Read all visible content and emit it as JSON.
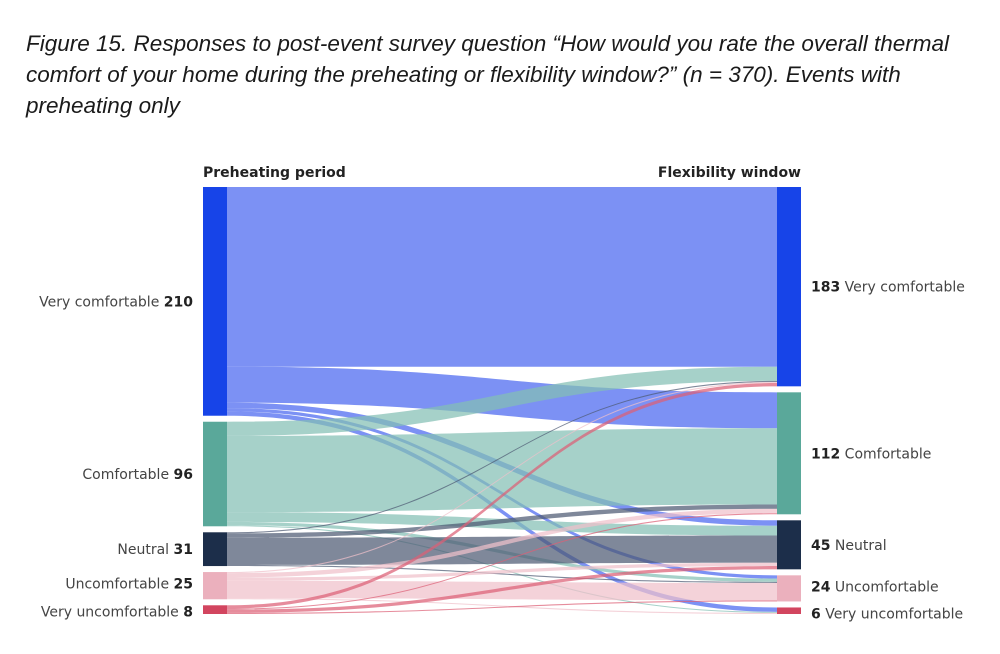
{
  "figure": {
    "caption": "Figure 15. Responses to post-event survey question “How would you rate the overall thermal comfort of your home during the preheating or flexibility window?” (n = 370). Events with preheating only"
  },
  "chart_data": {
    "type": "sankey",
    "columns": [
      "Preheating period",
      "Flexibility window"
    ],
    "left_nodes": [
      {
        "id": "L_vc",
        "label": "Very comfortable",
        "value": 210,
        "color": "#1744e8",
        "flow_color": "#4a66f0"
      },
      {
        "id": "L_c",
        "label": "Comfortable",
        "value": 96,
        "color": "#5aa89a",
        "flow_color": "#84bfb4"
      },
      {
        "id": "L_n",
        "label": "Neutral",
        "value": 31,
        "color": "#1c2e4a",
        "flow_color": "#4d5a73"
      },
      {
        "id": "L_u",
        "label": "Uncomfortable",
        "value": 25,
        "color": "#ebb0bd",
        "flow_color": "#f0c1cb"
      },
      {
        "id": "L_vu",
        "label": "Very uncomfortable",
        "value": 8,
        "color": "#d2455f",
        "flow_color": "#dc6076"
      }
    ],
    "right_nodes": [
      {
        "id": "R_vc",
        "label": "Very comfortable",
        "value": 183,
        "color": "#1744e8"
      },
      {
        "id": "R_c",
        "label": "Comfortable",
        "value": 112,
        "color": "#5aa89a"
      },
      {
        "id": "R_n",
        "label": "Neutral",
        "value": 45,
        "color": "#1c2e4a"
      },
      {
        "id": "R_u",
        "label": "Uncomfortable",
        "value": 24,
        "color": "#ebb0bd"
      },
      {
        "id": "R_vu",
        "label": "Very uncomfortable",
        "value": 6,
        "color": "#d2455f"
      }
    ],
    "flows": [
      {
        "source": "L_vc",
        "target": "R_vc",
        "value": 165
      },
      {
        "source": "L_vc",
        "target": "R_c",
        "value": 33
      },
      {
        "source": "L_vc",
        "target": "R_n",
        "value": 5
      },
      {
        "source": "L_vc",
        "target": "R_u",
        "value": 3
      },
      {
        "source": "L_vc",
        "target": "R_vu",
        "value": 4
      },
      {
        "source": "L_c",
        "target": "R_vc",
        "value": 13
      },
      {
        "source": "L_c",
        "target": "R_c",
        "value": 70
      },
      {
        "source": "L_c",
        "target": "R_n",
        "value": 9
      },
      {
        "source": "L_c",
        "target": "R_u",
        "value": 3
      },
      {
        "source": "L_c",
        "target": "R_vu",
        "value": 1
      },
      {
        "source": "L_n",
        "target": "R_vc",
        "value": 1
      },
      {
        "source": "L_n",
        "target": "R_c",
        "value": 4
      },
      {
        "source": "L_n",
        "target": "R_n",
        "value": 25
      },
      {
        "source": "L_n",
        "target": "R_u",
        "value": 1
      },
      {
        "source": "L_u",
        "target": "R_vc",
        "value": 1
      },
      {
        "source": "L_u",
        "target": "R_c",
        "value": 4
      },
      {
        "source": "L_u",
        "target": "R_n",
        "value": 3
      },
      {
        "source": "L_u",
        "target": "R_u",
        "value": 16
      },
      {
        "source": "L_u",
        "target": "R_vu",
        "value": 1
      },
      {
        "source": "L_vu",
        "target": "R_vc",
        "value": 3
      },
      {
        "source": "L_vu",
        "target": "R_c",
        "value": 1
      },
      {
        "source": "L_vu",
        "target": "R_n",
        "value": 3
      },
      {
        "source": "L_vu",
        "target": "R_u",
        "value": 1
      }
    ]
  }
}
